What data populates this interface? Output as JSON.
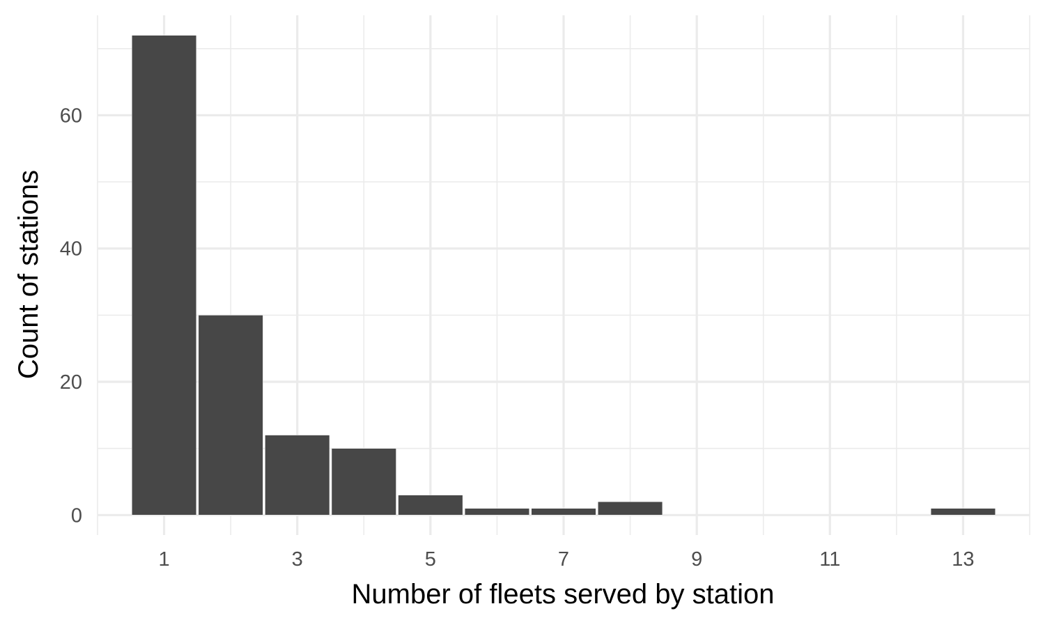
{
  "chart_data": {
    "type": "bar",
    "title": "",
    "xlabel": "Number of fleets served by station",
    "ylabel": "Count of stations",
    "x": [
      1,
      2,
      3,
      4,
      5,
      6,
      7,
      8,
      9,
      10,
      11,
      12,
      13
    ],
    "values": [
      72,
      30,
      12,
      10,
      3,
      1,
      1,
      2,
      0,
      0,
      0,
      0,
      1
    ],
    "xlim": [
      0,
      14
    ],
    "ylim": [
      -3,
      75
    ],
    "x_ticks": [
      1,
      3,
      5,
      7,
      9,
      11,
      13
    ],
    "y_ticks": [
      0,
      20,
      40,
      60
    ],
    "grid": true,
    "bar_color": "#474747",
    "grid_color": "#ebebeb"
  }
}
